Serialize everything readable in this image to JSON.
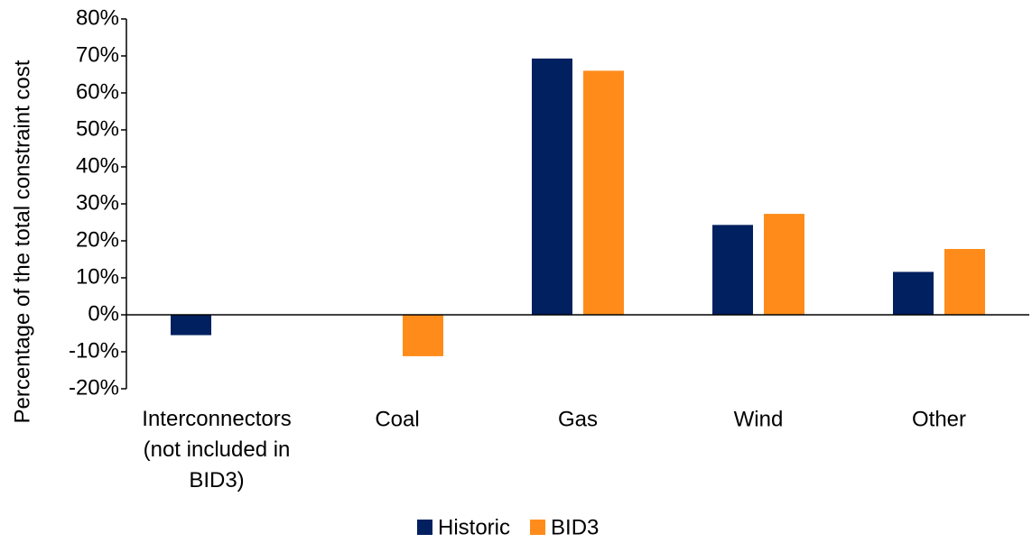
{
  "chart_data": {
    "type": "bar",
    "y_label": "Percentage of the total constraint cost",
    "categories": [
      "Interconnectors (not included in BID3)",
      "Coal",
      "Gas",
      "Wind",
      "Other"
    ],
    "series": [
      {
        "name": "Historic",
        "color": "#002060",
        "values": [
          -5.5,
          null,
          69.3,
          24.3,
          11.6
        ]
      },
      {
        "name": "BID3",
        "color": "#ff8c1a",
        "values": [
          null,
          -11.2,
          66,
          27.3,
          17.8
        ]
      }
    ],
    "ylim": [
      -20,
      80
    ],
    "yticks": [
      {
        "value": -20,
        "label": "-20%"
      },
      {
        "value": -10,
        "label": "-10%"
      },
      {
        "value": 0,
        "label": "0%"
      },
      {
        "value": 10,
        "label": "10%"
      },
      {
        "value": 20,
        "label": "20%"
      },
      {
        "value": 30,
        "label": "30%"
      },
      {
        "value": 40,
        "label": "40%"
      },
      {
        "value": 50,
        "label": "50%"
      },
      {
        "value": 60,
        "label": "60%"
      },
      {
        "value": 70,
        "label": "70%"
      },
      {
        "value": 80,
        "label": "80%"
      }
    ],
    "grid": false,
    "legend": "bottom"
  }
}
